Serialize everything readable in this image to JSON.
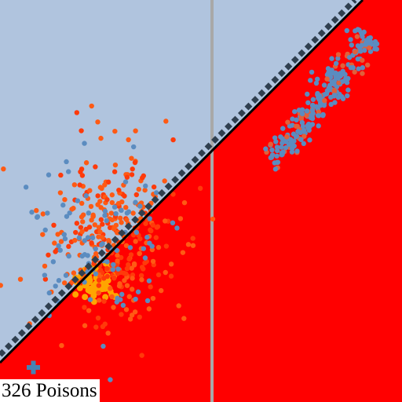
{
  "caption": "326 Poisons"
}
